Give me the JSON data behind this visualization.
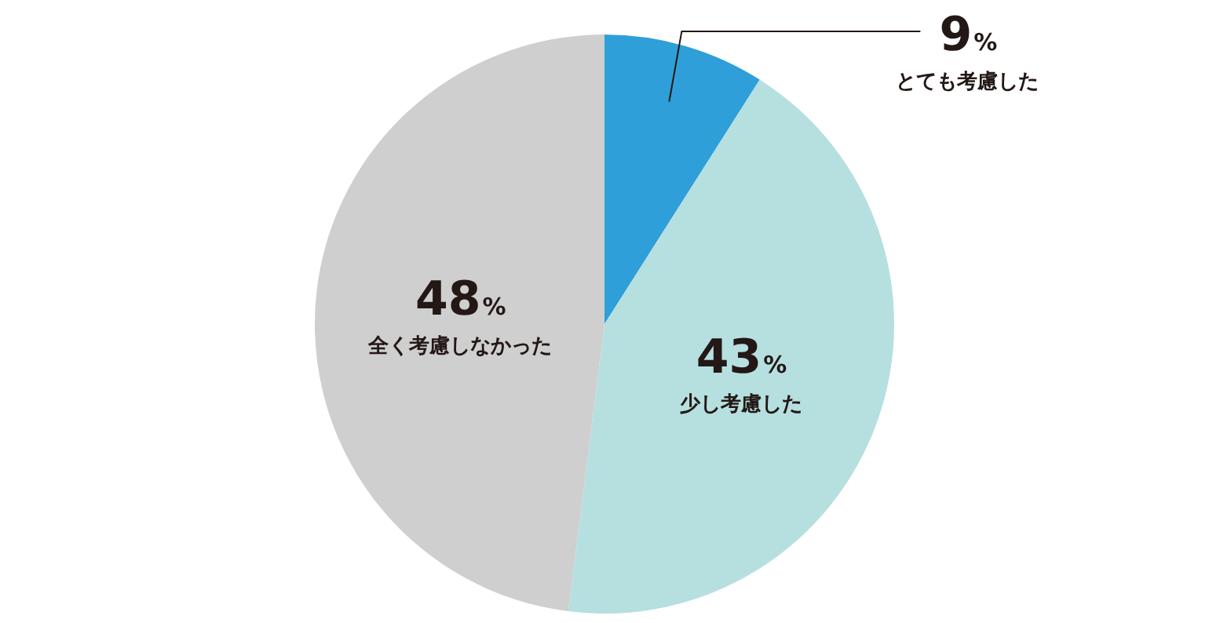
{
  "chart_data": {
    "type": "pie",
    "categories": [
      "とても考慮した",
      "少し考慮した",
      "全く考慮しなかった"
    ],
    "values": [
      9,
      43,
      48
    ],
    "colors": [
      "#2e9fd9",
      "#b6dfe0",
      "#cfcfcf"
    ],
    "value_labels": [
      "9%",
      "43%",
      "48%"
    ],
    "legend": false
  }
}
